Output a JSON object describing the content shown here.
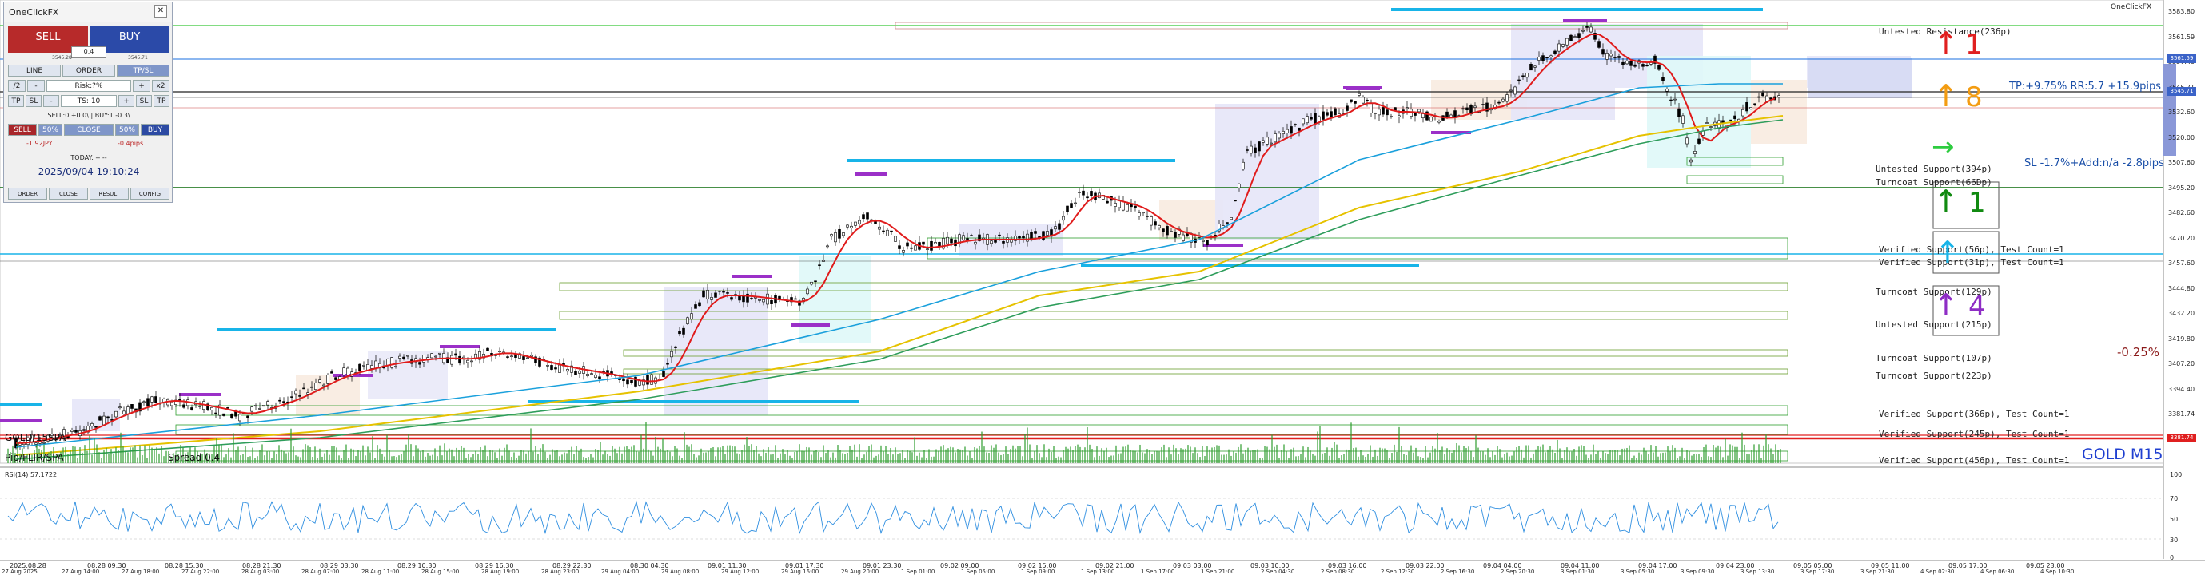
{
  "symbol_label": "OneClickFX",
  "instrument": "GOLD M15",
  "rsi_label": "RSI(14) 57.1722",
  "panel": {
    "title": "OneClickFX",
    "sell": "SELL",
    "buy": "BUY",
    "lot": "0.4",
    "bid_small": "3545.28",
    "ask_small": "3545.71",
    "tabs": [
      "LINE",
      "ORDER",
      "TP/SL"
    ],
    "row2": {
      "minus": "/2",
      "risk": "Risk:?%",
      "plus": "+",
      "x2": "x2"
    },
    "row3": {
      "tp": "TP",
      "sl": "SL",
      "minus": "-",
      "ts": "TS: 10",
      "plus": "+",
      "sl2": "SL",
      "tp2": "TP"
    },
    "position_info": "SELL:0 +0.0\\ | BUY:1 -0.3\\",
    "row4": {
      "sell": "SELL",
      "p50a": "50%",
      "close": "CLOSE",
      "p50b": "50%",
      "buy": "BUY"
    },
    "pnl_left": "-1.92JPY",
    "pnl_right": "-0.4pips",
    "today": "TODAY: -- --",
    "datetime": "2025/09/04  19:10:24",
    "bottom": [
      "ORDER",
      "CLOSE",
      "RESULT",
      "CONFIG"
    ]
  },
  "annotations": {
    "tp_text": "TP:+9.75% RR:5.7 +15.9pips",
    "sl_text": "SL -1.7%+Add:n/a -2.8pips",
    "pct_text": "-0.25%",
    "arrow_1_red": "1",
    "arrow_8": "8",
    "arrow_1_green": "1",
    "arrow_4": "4",
    "overlay_1": "GOLD/15SPA",
    "overlay_2": "Pip/FLIR/SPA",
    "overlay_3": "Spread 0.4"
  },
  "zones": [
    {
      "text": "Untested Resistance(236p)"
    },
    {
      "text": "Untested Support(394p)"
    },
    {
      "text": "Turncoat Support(66Dp)"
    },
    {
      "text": "Verified Support(56p), Test Count=1"
    },
    {
      "text": "Verified Support(31p), Test Count=1"
    },
    {
      "text": "Turncoat Support(129p)"
    },
    {
      "text": "Untested Support(215p)"
    },
    {
      "text": "Turncoat Support(107p)"
    },
    {
      "text": "Turncoat Support(223p)"
    },
    {
      "text": "Verified Support(366p), Test Count=1"
    },
    {
      "text": "Verified Support(245p), Test Count=1"
    },
    {
      "text": "Verified Support(456p), Test Count=1"
    }
  ],
  "price_axis": [
    "3583.80",
    "3561.59",
    "3557.40",
    "3545.71",
    "3532.60",
    "3520.00",
    "3507.60",
    "3495.20",
    "3482.60",
    "3470.20",
    "3457.60",
    "3444.80",
    "3432.20",
    "3419.80",
    "3407.20",
    "3394.40",
    "3381.74",
    "3369.20"
  ],
  "price_tags": [
    {
      "text": "3561.59",
      "color": "#3b63c8"
    },
    {
      "text": "3545.71",
      "color": "#3b63c8"
    },
    {
      "text": "3381.74",
      "color": "#e02020"
    }
  ],
  "rsi_axis": [
    "100",
    "70",
    "50",
    "30",
    "0"
  ],
  "time_axis_top": [
    "2025.08.28",
    "08.28 09:30",
    "08.28 15:30",
    "08.28 21:30",
    "08.29 03:30",
    "08.29 10:30",
    "08.29 16:30",
    "08.29 22:30",
    "08.30 04:30",
    "09.01 11:30",
    "09.01 17:30",
    "09.01 23:30",
    "09.02 09:00",
    "09.02 15:00",
    "09.02 21:00",
    "09.03 03:00",
    "09.03 10:00",
    "09.03 16:00",
    "09.03 22:00",
    "09.04 04:00",
    "09.04 11:00",
    "09.04 17:00",
    "09.04 23:00",
    "09.05 05:00",
    "09.05 11:00",
    "09.05 17:00",
    "09.05 23:00"
  ],
  "time_axis_bottom": [
    "27 Aug 2025",
    "27 Aug 14:00",
    "27 Aug 18:00",
    "27 Aug 22:00",
    "28 Aug 03:00",
    "28 Aug 07:00",
    "28 Aug 11:00",
    "28 Aug 15:00",
    "28 Aug 19:00",
    "28 Aug 23:00",
    "29 Aug 04:00",
    "29 Aug 08:00",
    "29 Aug 12:00",
    "29 Aug 16:00",
    "29 Aug 20:00",
    "1 Sep 01:00",
    "1 Sep 05:00",
    "1 Sep 09:00",
    "1 Sep 13:00",
    "1 Sep 17:00",
    "1 Sep 21:00",
    "2 Sep 04:30",
    "2 Sep 08:30",
    "2 Sep 12:30",
    "2 Sep 16:30",
    "2 Sep 20:30",
    "3 Sep 01:30",
    "3 Sep 05:30",
    "3 Sep 09:30",
    "3 Sep 13:30",
    "3 Sep 17:30",
    "3 Sep 21:30",
    "4 Sep 02:30",
    "4 Sep 06:30",
    "4 Sep 10:30"
  ],
  "colors": {
    "candle": "#000000",
    "ma_fast": "#e01b1b",
    "ma_mid": "#1aa0dc",
    "ma_slow": "#e6c200",
    "ma_long": "#2e9d5b",
    "cyan_level": "#18b4e8",
    "purple_level": "#9b30c8",
    "resistance": "#37c837",
    "support_blue": "#1a6fe0",
    "volume": "#2e9d2e",
    "rsi": "#2e8ee0"
  }
}
